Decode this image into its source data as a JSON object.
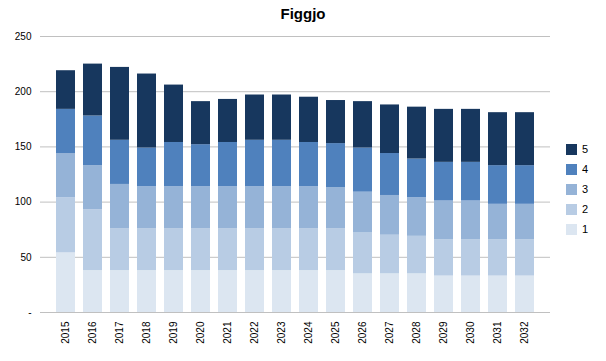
{
  "chart_data": {
    "type": "bar",
    "stacked": true,
    "title": "Figgjo",
    "categories": [
      "2015",
      "2016",
      "2017",
      "2018",
      "2019",
      "2020",
      "2021",
      "2022",
      "2023",
      "2024",
      "2025",
      "2026",
      "2027",
      "2028",
      "2029",
      "2030",
      "2031",
      "2032"
    ],
    "series": [
      {
        "name": "1",
        "color": "#dce6f1",
        "values": [
          54,
          38,
          38,
          38,
          38,
          38,
          38,
          38,
          38,
          38,
          38,
          35,
          35,
          35,
          33,
          33,
          33,
          33
        ]
      },
      {
        "name": "2",
        "color": "#b8cce4",
        "values": [
          50,
          55,
          38,
          38,
          38,
          38,
          38,
          38,
          38,
          38,
          38,
          37,
          35,
          34,
          33,
          33,
          33,
          33
        ]
      },
      {
        "name": "3",
        "color": "#95b3d7",
        "values": [
          40,
          40,
          40,
          38,
          38,
          38,
          38,
          38,
          38,
          38,
          37,
          37,
          36,
          35,
          35,
          35,
          32,
          32
        ]
      },
      {
        "name": "4",
        "color": "#4f81bd",
        "values": [
          40,
          45,
          40,
          35,
          40,
          38,
          40,
          42,
          42,
          40,
          40,
          40,
          38,
          35,
          35,
          35,
          35,
          35
        ]
      },
      {
        "name": "5",
        "color": "#17375e",
        "values": [
          35,
          47,
          66,
          67,
          52,
          39,
          39,
          41,
          41,
          41,
          39,
          42,
          44,
          47,
          48,
          48,
          48,
          48
        ]
      }
    ],
    "ylim": [
      0,
      250
    ],
    "yticks": [
      {
        "value": 0,
        "label": "-"
      },
      50,
      100,
      150,
      200,
      250
    ],
    "grid": true,
    "legend": "right"
  }
}
